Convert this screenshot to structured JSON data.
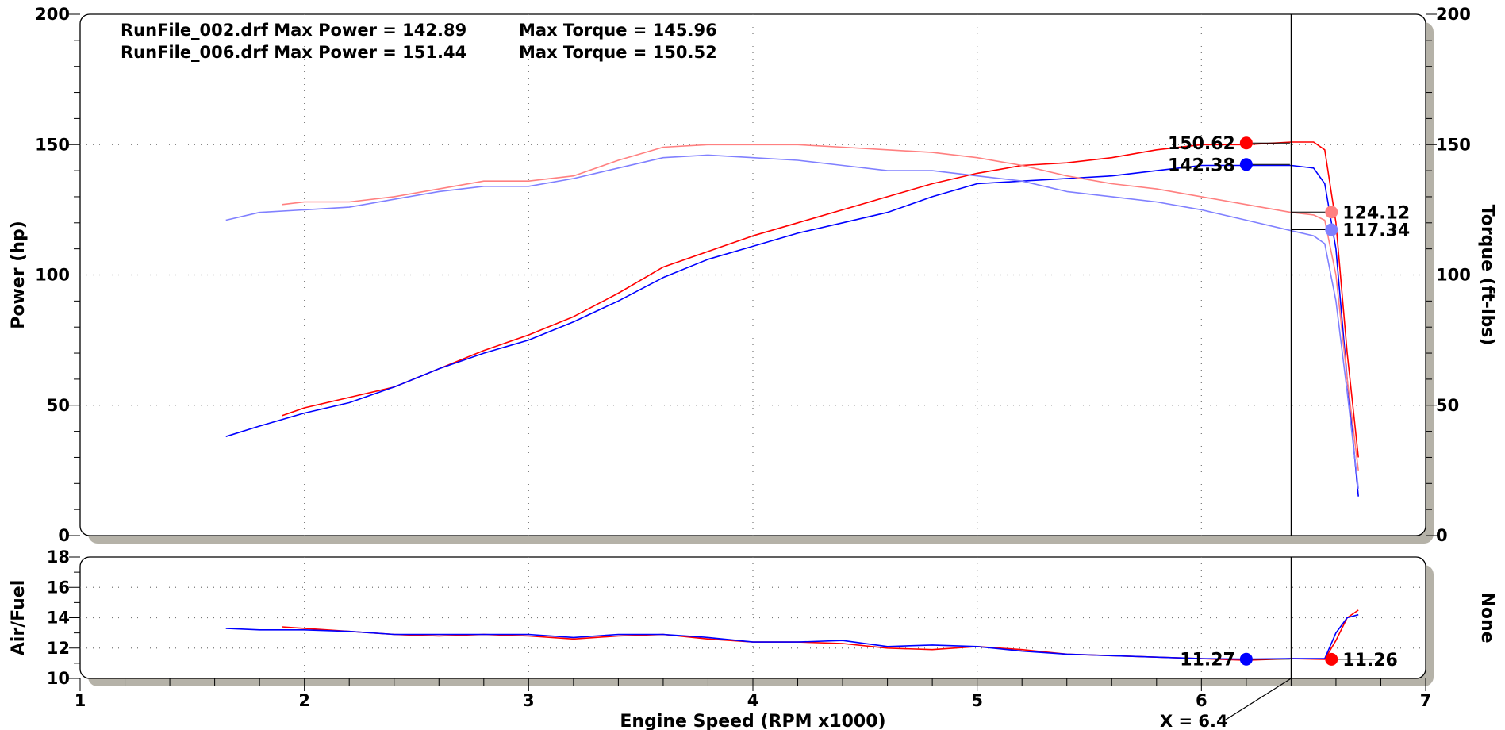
{
  "chart_data": [
    {
      "type": "line",
      "xlabel": "Engine Speed (RPM x1000)",
      "ylabel": "Power (hp)",
      "y2label": "Torque (ft-lbs)",
      "xlim": [
        1,
        7
      ],
      "ylim": [
        0,
        200
      ],
      "y2lim": [
        0,
        200
      ],
      "x_ticks": [
        "1",
        "2",
        "3",
        "4",
        "5",
        "6",
        "7"
      ],
      "y_ticks": [
        "0",
        "50",
        "100",
        "150",
        "200"
      ],
      "y2_ticks": [
        "0",
        "50",
        "100",
        "150",
        "200"
      ],
      "grid": true,
      "header_lines": [
        {
          "file": "RunFile_002.drf Max Power = 142.89",
          "torque": "Max Torque = 145.96"
        },
        {
          "file": "RunFile_006.drf Max Power = 151.44",
          "torque": "Max Torque = 150.52"
        }
      ],
      "series": [
        {
          "axis": "left",
          "color": "#ff0000",
          "x": [
            1.9,
            2.0,
            2.2,
            2.4,
            2.6,
            2.8,
            3.0,
            3.2,
            3.4,
            3.6,
            3.8,
            4.0,
            4.2,
            4.4,
            4.6,
            4.8,
            5.0,
            5.2,
            5.4,
            5.6,
            5.8,
            6.0,
            6.2,
            6.4,
            6.5,
            6.55,
            6.6,
            6.65,
            6.7
          ],
          "y": [
            46,
            49,
            53,
            57,
            64,
            71,
            77,
            84,
            93,
            103,
            109,
            115,
            120,
            125,
            130,
            135,
            139,
            142,
            143,
            145,
            148,
            150,
            150,
            151,
            151,
            148,
            120,
            70,
            30
          ]
        },
        {
          "axis": "left",
          "color": "#0000ff",
          "x": [
            1.65,
            1.8,
            2.0,
            2.2,
            2.4,
            2.6,
            2.8,
            3.0,
            3.2,
            3.4,
            3.6,
            3.8,
            4.0,
            4.2,
            4.4,
            4.6,
            4.8,
            5.0,
            5.2,
            5.4,
            5.6,
            5.8,
            6.0,
            6.2,
            6.4,
            6.5,
            6.55,
            6.6,
            6.65,
            6.7
          ],
          "y": [
            38,
            42,
            47,
            51,
            57,
            64,
            70,
            75,
            82,
            90,
            99,
            106,
            111,
            116,
            120,
            124,
            130,
            135,
            136,
            137,
            138,
            140,
            142,
            142,
            142,
            141,
            135,
            110,
            60,
            15
          ]
        },
        {
          "axis": "right",
          "color": "#ff8080",
          "x": [
            1.9,
            2.0,
            2.2,
            2.4,
            2.6,
            2.8,
            3.0,
            3.2,
            3.4,
            3.6,
            3.8,
            4.0,
            4.2,
            4.4,
            4.6,
            4.8,
            5.0,
            5.2,
            5.4,
            5.6,
            5.8,
            6.0,
            6.2,
            6.4,
            6.5,
            6.55,
            6.6,
            6.65,
            6.7
          ],
          "y": [
            127,
            128,
            128,
            130,
            133,
            136,
            136,
            138,
            144,
            149,
            150,
            150,
            150,
            149,
            148,
            147,
            145,
            142,
            138,
            135,
            133,
            130,
            127,
            124,
            123,
            121,
            100,
            60,
            25
          ]
        },
        {
          "axis": "right",
          "color": "#8080ff",
          "x": [
            1.65,
            1.8,
            2.0,
            2.2,
            2.4,
            2.6,
            2.8,
            3.0,
            3.2,
            3.4,
            3.6,
            3.8,
            4.0,
            4.2,
            4.4,
            4.6,
            4.8,
            5.0,
            5.2,
            5.4,
            5.6,
            5.8,
            6.0,
            6.2,
            6.4,
            6.5,
            6.55,
            6.6,
            6.65,
            6.7
          ],
          "y": [
            121,
            124,
            125,
            126,
            129,
            132,
            134,
            134,
            137,
            141,
            145,
            146,
            145,
            144,
            142,
            140,
            140,
            138,
            136,
            132,
            130,
            128,
            125,
            121,
            117,
            115,
            112,
            90,
            55,
            18
          ]
        }
      ],
      "markers": [
        {
          "axis": "left",
          "x": 6.2,
          "y": 150.62,
          "label": "150.62",
          "color": "#ff0000",
          "side": "left"
        },
        {
          "axis": "left",
          "x": 6.2,
          "y": 142.38,
          "label": "142.38",
          "color": "#0000ff",
          "side": "left"
        },
        {
          "axis": "right",
          "x": 6.58,
          "y": 124.12,
          "label": "124.12",
          "color": "#ff8080",
          "side": "right",
          "attach": 6.4
        },
        {
          "axis": "right",
          "x": 6.58,
          "y": 117.34,
          "label": "117.34",
          "color": "#8080ff",
          "side": "right",
          "attach": 6.4
        }
      ]
    },
    {
      "type": "line",
      "xlabel": "Engine Speed (RPM x1000)",
      "ylabel": "Air/Fuel",
      "y2label": "None",
      "xlim": [
        1,
        7
      ],
      "ylim": [
        10,
        18
      ],
      "y_ticks": [
        "10",
        "12",
        "14",
        "16",
        "18"
      ],
      "grid": true,
      "series": [
        {
          "color": "#ff0000",
          "x": [
            1.9,
            2.0,
            2.2,
            2.4,
            2.6,
            2.8,
            3.0,
            3.2,
            3.4,
            3.6,
            3.8,
            4.0,
            4.2,
            4.4,
            4.6,
            4.8,
            5.0,
            5.2,
            5.4,
            5.6,
            5.8,
            6.0,
            6.2,
            6.4,
            6.55,
            6.6,
            6.65,
            6.7
          ],
          "y": [
            13.4,
            13.3,
            13.1,
            12.9,
            12.8,
            12.9,
            12.8,
            12.6,
            12.8,
            12.9,
            12.6,
            12.4,
            12.4,
            12.3,
            12.0,
            11.9,
            12.1,
            11.9,
            11.6,
            11.5,
            11.4,
            11.3,
            11.2,
            11.3,
            11.26,
            12.5,
            14.0,
            14.5
          ]
        },
        {
          "color": "#0000ff",
          "x": [
            1.65,
            1.8,
            2.0,
            2.2,
            2.4,
            2.6,
            2.8,
            3.0,
            3.2,
            3.4,
            3.6,
            3.8,
            4.0,
            4.2,
            4.4,
            4.6,
            4.8,
            5.0,
            5.2,
            5.4,
            5.6,
            5.8,
            6.0,
            6.2,
            6.4,
            6.55,
            6.6,
            6.65,
            6.7
          ],
          "y": [
            13.3,
            13.2,
            13.2,
            13.1,
            12.9,
            12.9,
            12.9,
            12.9,
            12.7,
            12.9,
            12.9,
            12.7,
            12.4,
            12.4,
            12.5,
            12.1,
            12.2,
            12.1,
            11.8,
            11.6,
            11.5,
            11.4,
            11.3,
            11.27,
            11.3,
            11.3,
            13.0,
            14.0,
            14.2
          ]
        }
      ],
      "markers": [
        {
          "x": 6.2,
          "y": 11.27,
          "label": "11.27",
          "color": "#0000ff",
          "side": "left"
        },
        {
          "x": 6.58,
          "y": 11.26,
          "label": "11.26",
          "color": "#ff0000",
          "side": "right"
        }
      ]
    }
  ],
  "cursor": {
    "x": 6.4,
    "label": "X = 6.4"
  }
}
